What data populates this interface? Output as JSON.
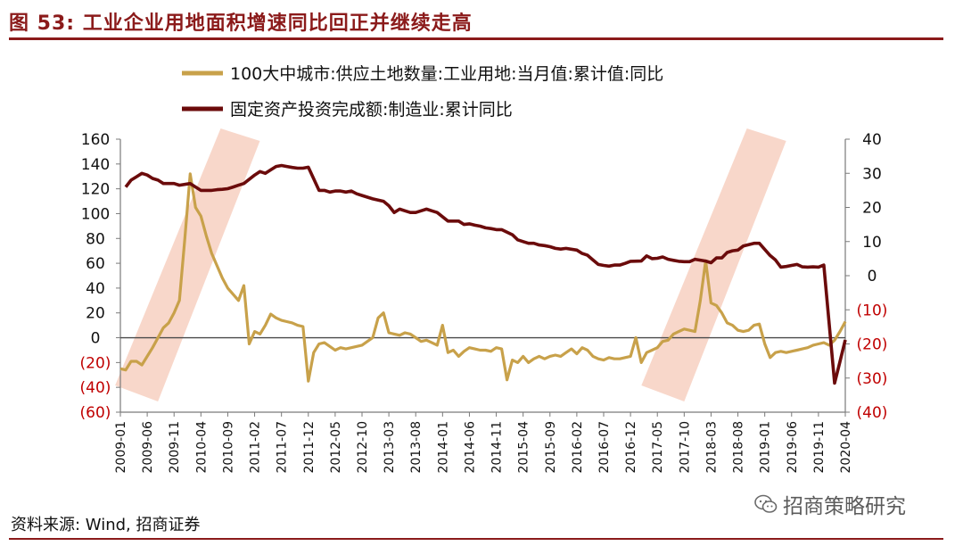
{
  "figure": {
    "title": "图 53:  工业企业用地面积增速同比回正并继续走高",
    "source": "资料来源:  Wind, 招商证券",
    "watermark": "招商策略研究"
  },
  "colors": {
    "land_series": "#c8a14a",
    "fai_series": "#6b0b0b",
    "highlight": "#f6c9b8",
    "title": "#8b1a1a",
    "negative_label": "#c00000"
  },
  "chart_data": {
    "type": "line",
    "title": "图 53:  工业企业用地面积增速同比回正并继续走高",
    "legend_position": "top-right",
    "left_axis": {
      "range": [
        -60,
        160
      ],
      "ticks": [
        160,
        140,
        120,
        100,
        80,
        60,
        40,
        20,
        0,
        -20,
        -40,
        -60
      ],
      "tick_labels": [
        "160",
        "140",
        "120",
        "100",
        "80",
        "60",
        "40",
        "20",
        "0",
        "(20)",
        "(40)",
        "(60)"
      ]
    },
    "right_axis": {
      "range": [
        -40,
        40
      ],
      "ticks": [
        40,
        30,
        20,
        10,
        0,
        -10,
        -20,
        -30,
        -40
      ],
      "tick_labels": [
        "40",
        "30",
        "20",
        "10",
        "0",
        "(10)",
        "(20)",
        "(30)",
        "(40)"
      ]
    },
    "x_tick_labels": [
      "2009-01",
      "2009-06",
      "2009-11",
      "2010-04",
      "2010-09",
      "2011-02",
      "2011-07",
      "2011-12",
      "2012-05",
      "2012-10",
      "2013-03",
      "2013-08",
      "2014-01",
      "2014-06",
      "2014-11",
      "2015-04",
      "2015-09",
      "2016-02",
      "2016-07",
      "2016-12",
      "2017-05",
      "2017-10",
      "2018-03",
      "2018-08",
      "2019-01",
      "2019-06",
      "2019-11",
      "2020-04"
    ],
    "highlight_periods": [
      {
        "from": "2009-08",
        "to": "2010-10"
      },
      {
        "from": "2017-10",
        "to": "2018-12"
      }
    ],
    "series": [
      {
        "name": "100大中城市:供应土地数量:工业用地:当月值:累计值:同比",
        "axis": "left",
        "points": [
          [
            "2009-01",
            -25
          ],
          [
            "2009-02",
            -26
          ],
          [
            "2009-03",
            -19
          ],
          [
            "2009-04",
            -19
          ],
          [
            "2009-05",
            -22
          ],
          [
            "2009-06",
            -15
          ],
          [
            "2009-07",
            -8
          ],
          [
            "2009-08",
            0
          ],
          [
            "2009-09",
            8
          ],
          [
            "2009-10",
            12
          ],
          [
            "2009-11",
            20
          ],
          [
            "2009-12",
            30
          ],
          [
            "2010-01",
            80
          ],
          [
            "2010-02",
            132
          ],
          [
            "2010-03",
            105
          ],
          [
            "2010-04",
            98
          ],
          [
            "2010-05",
            82
          ],
          [
            "2010-06",
            68
          ],
          [
            "2010-07",
            58
          ],
          [
            "2010-08",
            48
          ],
          [
            "2010-09",
            40
          ],
          [
            "2010-10",
            35
          ],
          [
            "2010-11",
            30
          ],
          [
            "2010-12",
            42
          ],
          [
            "2011-01",
            -5
          ],
          [
            "2011-02",
            5
          ],
          [
            "2011-03",
            3
          ],
          [
            "2011-04",
            10
          ],
          [
            "2011-05",
            19
          ],
          [
            "2011-06",
            16
          ],
          [
            "2011-07",
            14
          ],
          [
            "2011-08",
            13
          ],
          [
            "2011-09",
            12
          ],
          [
            "2011-10",
            10
          ],
          [
            "2011-11",
            9
          ],
          [
            "2011-12",
            -35
          ],
          [
            "2012-01",
            -12
          ],
          [
            "2012-02",
            -5
          ],
          [
            "2012-03",
            -4
          ],
          [
            "2012-04",
            -7
          ],
          [
            "2012-05",
            -10
          ],
          [
            "2012-06",
            -8
          ],
          [
            "2012-07",
            -9
          ],
          [
            "2012-08",
            -8
          ],
          [
            "2012-09",
            -7
          ],
          [
            "2012-10",
            -6
          ],
          [
            "2012-11",
            -3
          ],
          [
            "2012-12",
            0
          ],
          [
            "2013-01",
            16
          ],
          [
            "2013-02",
            20
          ],
          [
            "2013-03",
            4
          ],
          [
            "2013-04",
            3
          ],
          [
            "2013-05",
            2
          ],
          [
            "2013-06",
            4
          ],
          [
            "2013-07",
            3
          ],
          [
            "2013-08",
            0
          ],
          [
            "2013-09",
            -3
          ],
          [
            "2013-10",
            -2
          ],
          [
            "2013-11",
            -4
          ],
          [
            "2013-12",
            -6
          ],
          [
            "2014-01",
            10
          ],
          [
            "2014-02",
            -12
          ],
          [
            "2014-03",
            -10
          ],
          [
            "2014-04",
            -15
          ],
          [
            "2014-05",
            -11
          ],
          [
            "2014-06",
            -8
          ],
          [
            "2014-07",
            -9
          ],
          [
            "2014-08",
            -10
          ],
          [
            "2014-09",
            -10
          ],
          [
            "2014-10",
            -11
          ],
          [
            "2014-11",
            -8
          ],
          [
            "2014-12",
            -9
          ],
          [
            "2015-01",
            -34
          ],
          [
            "2015-02",
            -18
          ],
          [
            "2015-03",
            -20
          ],
          [
            "2015-04",
            -15
          ],
          [
            "2015-05",
            -20
          ],
          [
            "2015-06",
            -17
          ],
          [
            "2015-07",
            -15
          ],
          [
            "2015-08",
            -17
          ],
          [
            "2015-09",
            -15
          ],
          [
            "2015-10",
            -14
          ],
          [
            "2015-11",
            -15
          ],
          [
            "2015-12",
            -12
          ],
          [
            "2016-01",
            -9
          ],
          [
            "2016-02",
            -13
          ],
          [
            "2016-03",
            -8
          ],
          [
            "2016-04",
            -10
          ],
          [
            "2016-05",
            -15
          ],
          [
            "2016-06",
            -17
          ],
          [
            "2016-07",
            -18
          ],
          [
            "2016-08",
            -16
          ],
          [
            "2016-09",
            -17
          ],
          [
            "2016-10",
            -17
          ],
          [
            "2016-11",
            -16
          ],
          [
            "2016-12",
            -15
          ],
          [
            "2017-01",
            0
          ],
          [
            "2017-02",
            -20
          ],
          [
            "2017-03",
            -12
          ],
          [
            "2017-04",
            -10
          ],
          [
            "2017-05",
            -8
          ],
          [
            "2017-06",
            -3
          ],
          [
            "2017-07",
            -2
          ],
          [
            "2017-08",
            3
          ],
          [
            "2017-09",
            5
          ],
          [
            "2017-10",
            7
          ],
          [
            "2017-11",
            6
          ],
          [
            "2017-12",
            5
          ],
          [
            "2018-01",
            30
          ],
          [
            "2018-02",
            62
          ],
          [
            "2018-03",
            28
          ],
          [
            "2018-04",
            26
          ],
          [
            "2018-05",
            20
          ],
          [
            "2018-06",
            12
          ],
          [
            "2018-07",
            10
          ],
          [
            "2018-08",
            6
          ],
          [
            "2018-09",
            5
          ],
          [
            "2018-10",
            6
          ],
          [
            "2018-11",
            10
          ],
          [
            "2018-12",
            11
          ],
          [
            "2019-01",
            -5
          ],
          [
            "2019-02",
            -16
          ],
          [
            "2019-03",
            -12
          ],
          [
            "2019-04",
            -11
          ],
          [
            "2019-05",
            -12
          ],
          [
            "2019-06",
            -11
          ],
          [
            "2019-07",
            -10
          ],
          [
            "2019-08",
            -9
          ],
          [
            "2019-09",
            -8
          ],
          [
            "2019-10",
            -6
          ],
          [
            "2019-11",
            -5
          ],
          [
            "2019-12",
            -4
          ],
          [
            "2020-01",
            -6
          ],
          [
            "2020-02",
            -2
          ],
          [
            "2020-03",
            5
          ],
          [
            "2020-04",
            13
          ]
        ]
      },
      {
        "name": "固定资产投资完成额:制造业:累计同比",
        "axis": "right",
        "points": [
          [
            "2009-02",
            26
          ],
          [
            "2009-03",
            28
          ],
          [
            "2009-04",
            29
          ],
          [
            "2009-05",
            30
          ],
          [
            "2009-06",
            29.5
          ],
          [
            "2009-07",
            28.5
          ],
          [
            "2009-08",
            28
          ],
          [
            "2009-09",
            27
          ],
          [
            "2009-10",
            27
          ],
          [
            "2009-11",
            27
          ],
          [
            "2009-12",
            26.5
          ],
          [
            "2010-02",
            27
          ],
          [
            "2010-03",
            26
          ],
          [
            "2010-04",
            25
          ],
          [
            "2010-05",
            25
          ],
          [
            "2010-06",
            25
          ],
          [
            "2010-07",
            25.2
          ],
          [
            "2010-08",
            25.3
          ],
          [
            "2010-09",
            25.5
          ],
          [
            "2010-10",
            26
          ],
          [
            "2010-11",
            26.5
          ],
          [
            "2010-12",
            27
          ],
          [
            "2011-02",
            29.5
          ],
          [
            "2011-03",
            30.5
          ],
          [
            "2011-04",
            30
          ],
          [
            "2011-05",
            31
          ],
          [
            "2011-06",
            32
          ],
          [
            "2011-07",
            32.3
          ],
          [
            "2011-08",
            32
          ],
          [
            "2011-09",
            31.7
          ],
          [
            "2011-10",
            31.5
          ],
          [
            "2011-11",
            31.5
          ],
          [
            "2011-12",
            31.8
          ],
          [
            "2012-02",
            25
          ],
          [
            "2012-03",
            25
          ],
          [
            "2012-04",
            24.5
          ],
          [
            "2012-05",
            24.8
          ],
          [
            "2012-06",
            24.8
          ],
          [
            "2012-07",
            24.5
          ],
          [
            "2012-08",
            24.8
          ],
          [
            "2012-09",
            24
          ],
          [
            "2012-10",
            23.5
          ],
          [
            "2012-11",
            23
          ],
          [
            "2012-12",
            22.5
          ],
          [
            "2013-02",
            21.8
          ],
          [
            "2013-03",
            20.5
          ],
          [
            "2013-04",
            18.5
          ],
          [
            "2013-05",
            19.5
          ],
          [
            "2013-06",
            19
          ],
          [
            "2013-07",
            18.5
          ],
          [
            "2013-08",
            18.5
          ],
          [
            "2013-09",
            19
          ],
          [
            "2013-10",
            19.5
          ],
          [
            "2013-11",
            19
          ],
          [
            "2013-12",
            18.5
          ],
          [
            "2014-02",
            16
          ],
          [
            "2014-03",
            16
          ],
          [
            "2014-04",
            16
          ],
          [
            "2014-05",
            15
          ],
          [
            "2014-06",
            15.2
          ],
          [
            "2014-07",
            14.8
          ],
          [
            "2014-08",
            14.5
          ],
          [
            "2014-09",
            14
          ],
          [
            "2014-10",
            13.8
          ],
          [
            "2014-11",
            13.5
          ],
          [
            "2014-12",
            13.5
          ],
          [
            "2015-02",
            12
          ],
          [
            "2015-03",
            10.5
          ],
          [
            "2015-04",
            10
          ],
          [
            "2015-05",
            9.5
          ],
          [
            "2015-06",
            9.5
          ],
          [
            "2015-07",
            9
          ],
          [
            "2015-08",
            8.8
          ],
          [
            "2015-09",
            8.5
          ],
          [
            "2015-10",
            8
          ],
          [
            "2015-11",
            7.8
          ],
          [
            "2015-12",
            8
          ],
          [
            "2016-02",
            7.5
          ],
          [
            "2016-03",
            6.5
          ],
          [
            "2016-04",
            6
          ],
          [
            "2016-05",
            4.6
          ],
          [
            "2016-06",
            3.3
          ],
          [
            "2016-07",
            3
          ],
          [
            "2016-08",
            2.8
          ],
          [
            "2016-09",
            3.1
          ],
          [
            "2016-10",
            3.1
          ],
          [
            "2016-11",
            3.6
          ],
          [
            "2016-12",
            4.2
          ],
          [
            "2017-02",
            4.3
          ],
          [
            "2017-03",
            5.8
          ],
          [
            "2017-04",
            5
          ],
          [
            "2017-05",
            5.1
          ],
          [
            "2017-06",
            5.5
          ],
          [
            "2017-07",
            4.8
          ],
          [
            "2017-08",
            4.5
          ],
          [
            "2017-09",
            4.2
          ],
          [
            "2017-10",
            4.1
          ],
          [
            "2017-11",
            4.1
          ],
          [
            "2017-12",
            4.8
          ],
          [
            "2018-02",
            4.3
          ],
          [
            "2018-03",
            3.8
          ],
          [
            "2018-04",
            5.2
          ],
          [
            "2018-05",
            5.2
          ],
          [
            "2018-06",
            6.8
          ],
          [
            "2018-07",
            7.3
          ],
          [
            "2018-08",
            7.5
          ],
          [
            "2018-09",
            8.7
          ],
          [
            "2018-10",
            9.1
          ],
          [
            "2018-11",
            9.5
          ],
          [
            "2018-12",
            9.5
          ],
          [
            "2019-02",
            5.9
          ],
          [
            "2019-03",
            4.6
          ],
          [
            "2019-04",
            2.5
          ],
          [
            "2019-05",
            2.7
          ],
          [
            "2019-06",
            3
          ],
          [
            "2019-07",
            3.3
          ],
          [
            "2019-08",
            2.6
          ],
          [
            "2019-09",
            2.5
          ],
          [
            "2019-10",
            2.6
          ],
          [
            "2019-11",
            2.5
          ],
          [
            "2019-12",
            3.1
          ],
          [
            "2020-02",
            -31.5
          ],
          [
            "2020-03",
            -25.2
          ],
          [
            "2020-04",
            -18.8
          ]
        ]
      }
    ]
  }
}
